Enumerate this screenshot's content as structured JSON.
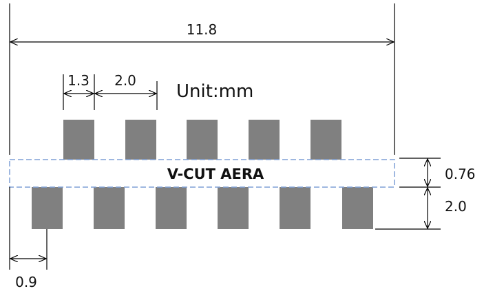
{
  "unit_label": "Unit:mm",
  "vcut_label": "V-CUT AERA",
  "dimensions": {
    "overall_width": "11.8",
    "pad_width": "1.3",
    "pad_pitch": "2.0",
    "vcut_height": "0.76",
    "pad_height": "2.0",
    "bottom_offset": "0.9"
  },
  "colors": {
    "pad": "#808080",
    "vcut_border": "#7f9fd6",
    "lines": "#000000",
    "text": "#111111"
  },
  "pads": {
    "top_count": 5,
    "bottom_count": 6
  }
}
